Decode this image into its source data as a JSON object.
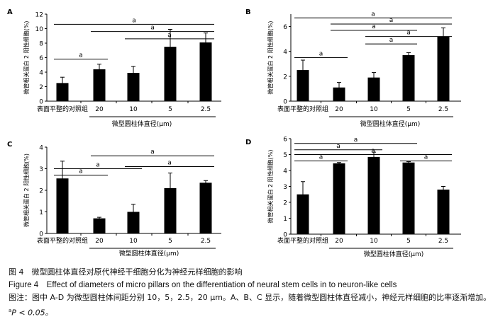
{
  "figure": {
    "caption_cn": "图 4　微型圆柱体直径对原代神经干细胞分化为神经元样细胞的影响",
    "caption_en": "Figure 4　Effect of diameters of micro pillars on the differentiation of neural stem cells in to neuron-like cells",
    "note_cn": "图注：图中 A-D 为微型圆柱体间距分别 10，5，2.5，20 μm。A、B、C 显示，随着微型圆柱体直径减小，神经元样细胞的比率逐渐增加。",
    "p_sup": "a",
    "p_text": "P < 0.05。"
  },
  "chart_data": [
    {
      "panel": "A",
      "type": "bar",
      "categories": [
        "表面平整的对照组",
        "20",
        "10",
        "5",
        "2.5"
      ],
      "values": [
        2.5,
        4.4,
        3.9,
        7.5,
        8.1
      ],
      "errors": [
        0.8,
        0.7,
        0.9,
        2.4,
        1.3
      ],
      "ylabel": "微管相关蛋白 2 阳性细胞(%)",
      "xlabel": "微型圆柱体直径(μm)",
      "ylim": [
        0,
        12
      ],
      "yticks": [
        0,
        2,
        4,
        6,
        8,
        10,
        12
      ],
      "significance": [
        {
          "from": 0,
          "to": 1,
          "label": "a",
          "y": 5.8
        },
        {
          "from": 0,
          "to": 4,
          "label": "a",
          "y": 10.6
        },
        {
          "from": 1,
          "to": 4,
          "label": "a",
          "y": 9.6
        },
        {
          "from": 2,
          "to": 4,
          "label": "a",
          "y": 8.6
        }
      ]
    },
    {
      "panel": "B",
      "type": "bar",
      "categories": [
        "表面平整的对照组",
        "20",
        "10",
        "5",
        "2.5"
      ],
      "values": [
        2.5,
        1.1,
        1.9,
        3.7,
        5.2
      ],
      "errors": [
        0.8,
        0.4,
        0.4,
        0.2,
        0.7
      ],
      "ylabel": "微管相关蛋白 2 阳性细胞(%)",
      "xlabel": "微型圆柱体直径(μm)",
      "ylim": [
        0,
        7
      ],
      "yticks": [
        0,
        2,
        4,
        6
      ],
      "significance": [
        {
          "from": 0,
          "to": 1,
          "label": "a",
          "y": 3.5
        },
        {
          "from": 0,
          "to": 4,
          "label": "a",
          "y": 6.7
        },
        {
          "from": 1,
          "to": 4,
          "label": "a",
          "y": 6.2
        },
        {
          "from": 1,
          "to": 3,
          "label": "a",
          "y": 5.7
        },
        {
          "from": 2,
          "to": 4,
          "label": "a",
          "y": 5.2
        },
        {
          "from": 2,
          "to": 3,
          "label": "a",
          "y": 4.6
        }
      ]
    },
    {
      "panel": "C",
      "type": "bar",
      "categories": [
        "表面平整的对照组",
        "20",
        "10",
        "5",
        "2.5"
      ],
      "values": [
        2.55,
        0.7,
        1.0,
        2.1,
        2.35
      ],
      "errors": [
        0.8,
        0.05,
        0.35,
        0.7,
        0.1
      ],
      "ylabel": "微管相关蛋白 2 阳性细胞(%)",
      "xlabel": "微型圆柱体直径(μm)",
      "ylim": [
        0,
        4
      ],
      "yticks": [
        0,
        1,
        2,
        3,
        4
      ],
      "significance": [
        {
          "from": 0,
          "to": 1,
          "label": "a",
          "y": 2.7
        },
        {
          "from": 0,
          "to": 2,
          "label": "a",
          "y": 3.0
        },
        {
          "from": 1,
          "to": 4,
          "label": "a",
          "y": 3.6
        },
        {
          "from": 2,
          "to": 4,
          "label": "a",
          "y": 3.1
        }
      ]
    },
    {
      "panel": "D",
      "type": "bar",
      "categories": [
        "表面平整的对照组",
        "20",
        "10",
        "5",
        "2.5"
      ],
      "values": [
        2.5,
        4.45,
        4.85,
        4.5,
        2.8
      ],
      "errors": [
        0.8,
        0.05,
        0.3,
        0.05,
        0.2
      ],
      "ylabel": "微管相关蛋白 2 阳性细胞(%)",
      "xlabel": "微型圆柱体直径(μm)",
      "ylim": [
        0,
        6
      ],
      "yticks": [
        0,
        1,
        2,
        3,
        4,
        5,
        6
      ],
      "significance": [
        {
          "from": 0,
          "to": 1,
          "label": "a",
          "y": 4.6
        },
        {
          "from": 0,
          "to": 2,
          "label": "a",
          "y": 5.3
        },
        {
          "from": 0,
          "to": 3,
          "label": "a",
          "y": 5.7
        },
        {
          "from": 0,
          "to": 4,
          "label": "a",
          "y": 5.0
        },
        {
          "from": 3,
          "to": 4,
          "label": "a",
          "y": 4.6
        }
      ]
    }
  ]
}
